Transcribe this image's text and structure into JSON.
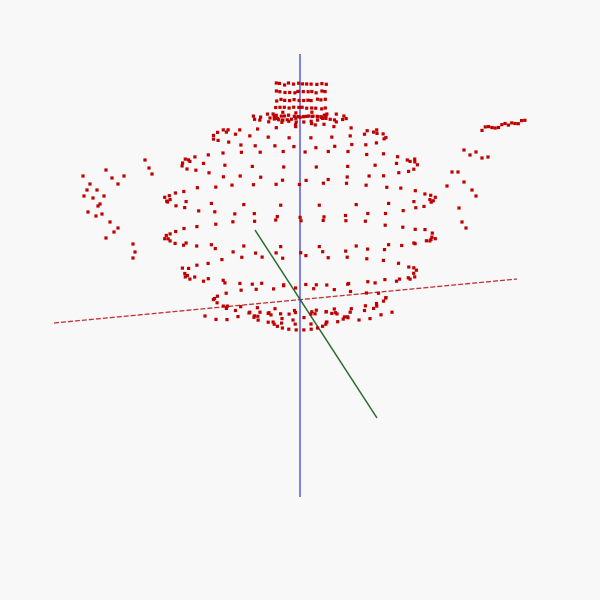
{
  "scene": {
    "type": "3d-point-cloud",
    "subject": "teapot",
    "background_color": "#f8f8f8",
    "point_color": "#c00000",
    "axes": [
      {
        "name": "x-axis",
        "color": "#c03030",
        "style": "dashed"
      },
      {
        "name": "y-axis",
        "color": "#2a6e2a",
        "style": "solid"
      },
      {
        "name": "z-axis",
        "color": "#2b36d8",
        "style": "solid"
      }
    ],
    "parts": [
      "lid",
      "body",
      "handle",
      "spout"
    ]
  }
}
